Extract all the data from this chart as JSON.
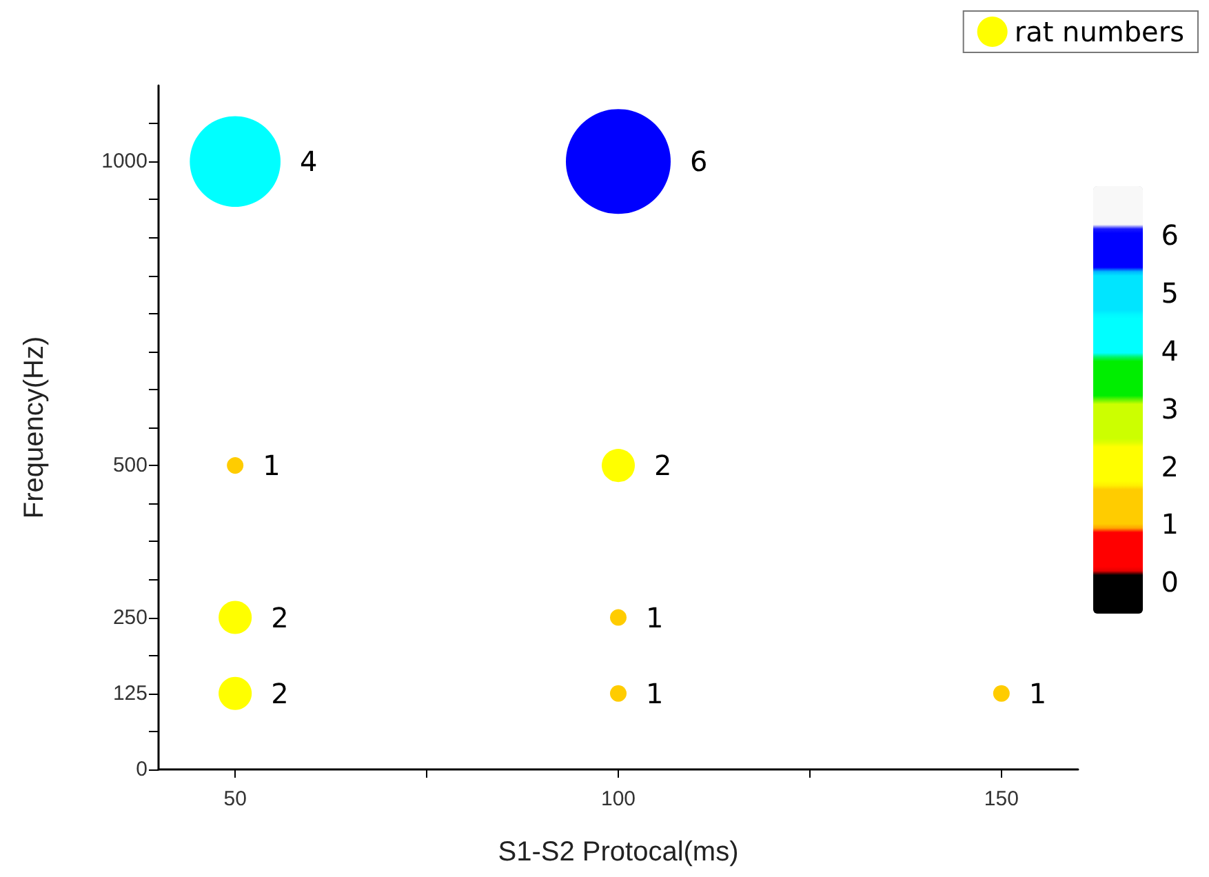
{
  "chart_data": {
    "type": "bubble",
    "xlabel": "S1-S2 Protocal(ms)",
    "ylabel": "Frequency(Hz)",
    "clim": [
      -0.5,
      6.9
    ],
    "cticks": [
      0,
      1,
      2,
      3,
      4,
      5,
      6
    ],
    "xlim": [
      40,
      160
    ],
    "xticks": [
      50,
      {
        "value": 75,
        "label": null
      },
      100,
      {
        "value": 125,
        "label": null
      },
      150
    ],
    "ylim": [
      0,
      1125
    ],
    "yticks": [
      0,
      {
        "value": 62.5,
        "label": null
      },
      125,
      {
        "value": 187.5,
        "label": null
      },
      250,
      {
        "value": 312.5,
        "label": null
      },
      {
        "value": 375,
        "label": null
      },
      {
        "value": 437.5,
        "label": null
      },
      500,
      {
        "value": 562.5,
        "label": null
      },
      {
        "value": 625,
        "label": null
      },
      {
        "value": 687.5,
        "label": null
      },
      {
        "value": 750,
        "label": null
      },
      {
        "value": 812.5,
        "label": null
      },
      {
        "value": 875,
        "label": null
      },
      {
        "value": 937.5,
        "label": null
      },
      1000,
      {
        "value": 1062.5,
        "label": null
      }
    ],
    "grid": false,
    "legend": "top right",
    "marker": "circle",
    "annotations": [
      {
        "text": "4",
        "x": 50,
        "y": 1000
      },
      {
        "text": "6",
        "x": 100,
        "y": 1000
      },
      {
        "text": "1",
        "x": 50,
        "y": 500
      },
      {
        "text": "2",
        "x": 100,
        "y": 500
      },
      {
        "text": "2",
        "x": 50,
        "y": 250
      },
      {
        "text": "1",
        "x": 100,
        "y": 250
      },
      {
        "text": "2",
        "x": 50,
        "y": 125
      },
      {
        "text": "1",
        "x": 100,
        "y": 125
      },
      {
        "text": "1",
        "x": 150,
        "y": 125
      }
    ],
    "series": [
      {
        "name": "rat numbers",
        "x": [
          50,
          100,
          50,
          100,
          50,
          100,
          50,
          100,
          150
        ],
        "values": [
          1000,
          1000,
          500,
          500,
          250,
          250,
          125,
          125,
          125
        ],
        "sizes": [
          0.75,
          1,
          0.025,
          0.1,
          0.1,
          0.025,
          0.1,
          0.025,
          0.025
        ],
        "cvalues": [
          4,
          6,
          1,
          2,
          2,
          1,
          2,
          1,
          1
        ]
      }
    ]
  }
}
